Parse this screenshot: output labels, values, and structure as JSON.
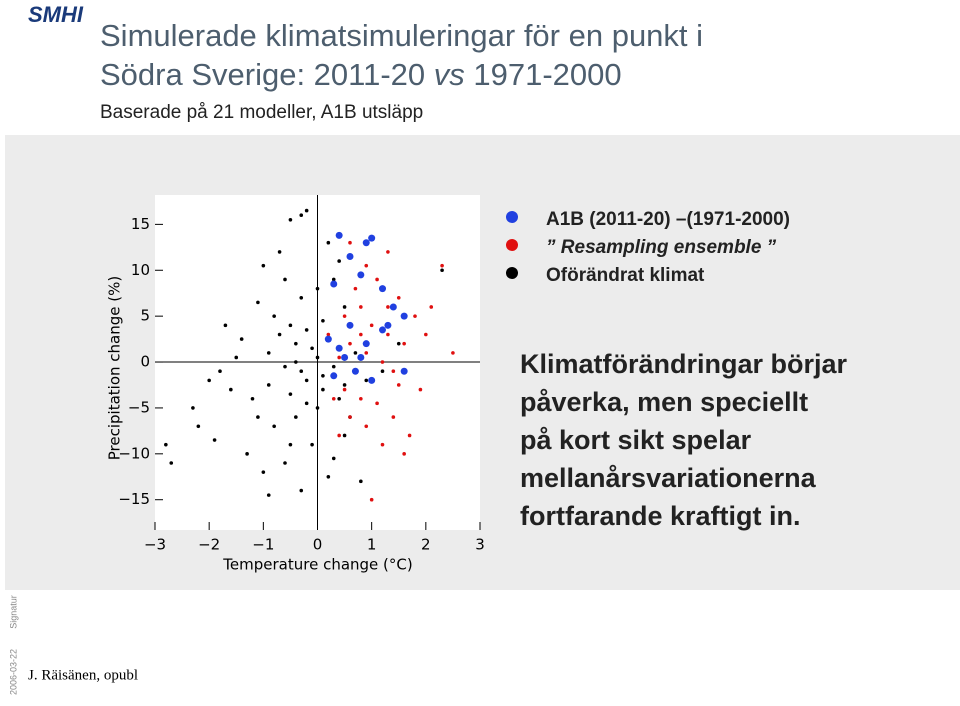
{
  "header": {
    "logo": "SMHI",
    "title_line1": "Simulerade klimatsimuleringar för en punkt i",
    "title_line2_a": "Södra Sverige: 2011-20 ",
    "title_line2_em": "vs",
    "title_line2_b": " 1971-2000",
    "subtitle": "Baserade på 21 modeller, A1B utsläpp"
  },
  "chart_data": {
    "type": "scatter",
    "x_label": "Temperature change (°C)",
    "y_label": "Precipitation change (%)",
    "xlim": [
      -3,
      3
    ],
    "ylim": [
      -18.3,
      18.2
    ],
    "xticks": [
      {
        "value": -3,
        "label": "−3"
      },
      {
        "value": -2,
        "label": "−2"
      },
      {
        "value": -1,
        "label": "−1"
      },
      0,
      1,
      2,
      3
    ],
    "yticks": [
      15,
      10,
      5,
      0,
      {
        "value": -5,
        "label": "−5"
      },
      {
        "value": -10,
        "label": "−10"
      },
      {
        "value": -15,
        "label": "−15"
      }
    ],
    "series": [
      {
        "name": "Oförändrat klimat",
        "color": "#000000",
        "x": [
          -0.3,
          -0.5,
          0.2,
          -0.7,
          -1,
          0.4,
          -0.6,
          0,
          -0.3,
          0.3,
          -1.1,
          -0.8,
          -0.5,
          -0.2,
          0.1,
          -0.4,
          -0.1,
          0.2,
          -0.9,
          -1.5,
          -1.8,
          -0.6,
          -0.3,
          0,
          0.3,
          -0.2,
          0.1,
          -0.5,
          -1.2,
          -1.6,
          -2,
          -2.2,
          -2.8,
          -1.9,
          -0.8,
          -0.4,
          0,
          0.4,
          0.6,
          -0.1,
          -0.6,
          -1,
          0.2,
          0.8,
          -0.3,
          -2.7,
          -1.3,
          0.5,
          0.9,
          0.7,
          -0.7,
          -1.4,
          -0.2,
          -0.9,
          1.5,
          1.2,
          -0.4,
          0.1,
          -1.1,
          -0.5,
          2.3,
          -0.2,
          0.5,
          -0.9,
          0.3,
          -1.7,
          -2.3,
          0.5
        ],
        "values": [
          16,
          15.5,
          13,
          12,
          10.5,
          11,
          9,
          8,
          7,
          9,
          6.5,
          5,
          4,
          3.5,
          4.5,
          2,
          1.5,
          2.5,
          1,
          0.5,
          -1,
          -0.5,
          -1,
          0.5,
          -0.5,
          -2,
          -3,
          -3.5,
          -4,
          -3,
          -2,
          -7,
          -9,
          -8.5,
          -7,
          -6,
          -5,
          -4,
          -6,
          -9,
          -11,
          -12,
          -12.5,
          -13,
          -14,
          -11,
          -10,
          -8,
          -2,
          1,
          3,
          2.5,
          -4.5,
          -2.5,
          2,
          -1,
          0,
          -1.5,
          -6,
          -9,
          10,
          16.5,
          6,
          -14.5,
          -10.5,
          4,
          -5,
          -2.5
        ]
      },
      {
        "name": "” Resampling ensemble ”",
        "color": "#e01010",
        "x": [
          0.5,
          0.8,
          1,
          1.3,
          0.6,
          0.9,
          1.2,
          0.4,
          0.7,
          1,
          0.5,
          0.8,
          1.4,
          1.6,
          1.8,
          1.5,
          1.1,
          0.9,
          1.3,
          0.6,
          2.3,
          2.1,
          1.9,
          1.4,
          0.9,
          0.6,
          1.2,
          0.4,
          1,
          0.3,
          1.7,
          2,
          1.1,
          0.7,
          1.5,
          0.2,
          2.5,
          1.6,
          0.8,
          1.3
        ],
        "values": [
          5,
          6,
          4,
          3,
          2,
          1,
          0,
          0.5,
          -1,
          -2,
          -3,
          -4,
          -1,
          2,
          5,
          7,
          9,
          10.5,
          12,
          13,
          10.5,
          6,
          -3,
          -6,
          -7,
          -6,
          -9,
          -8,
          -15,
          -4,
          -8,
          3,
          -4.5,
          8,
          -2.5,
          3,
          1,
          -10,
          3,
          6
        ]
      },
      {
        "name": "A1B (2011-20) –(1971-2000)",
        "color": "#2040e0",
        "x": [
          0.6,
          0.9,
          1,
          0.4,
          0.8,
          1.2,
          0.3,
          0.6,
          0.9,
          1.2,
          1.4,
          0.5,
          0.7,
          0.3,
          0.4,
          1.6,
          0.8,
          1.3,
          1.6,
          0.2,
          1
        ],
        "values": [
          11.5,
          13,
          13.5,
          13.8,
          9.5,
          8,
          8.5,
          4,
          2,
          3.5,
          6,
          0.5,
          -1,
          -1.5,
          1.5,
          5,
          0.5,
          4,
          -1,
          2.5,
          -2
        ]
      }
    ]
  },
  "annotation": [
    "Klimatförändringar börjar",
    "påverka, men speciellt",
    "på kort sikt spelar",
    "mellanårsvariationerna",
    "fortfarande kraftigt in."
  ],
  "footer": {
    "author": "J. Räisänen, opubl",
    "date": "2006-03-22",
    "signature": "Signatur"
  }
}
